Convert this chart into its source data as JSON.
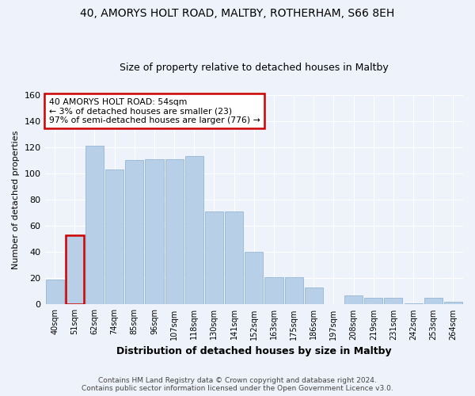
{
  "title": "40, AMORYS HOLT ROAD, MALTBY, ROTHERHAM, S66 8EH",
  "subtitle": "Size of property relative to detached houses in Maltby",
  "xlabel": "Distribution of detached houses by size in Maltby",
  "ylabel": "Number of detached properties",
  "bar_labels": [
    "40sqm",
    "51sqm",
    "62sqm",
    "74sqm",
    "85sqm",
    "96sqm",
    "107sqm",
    "118sqm",
    "130sqm",
    "141sqm",
    "152sqm",
    "163sqm",
    "175sqm",
    "186sqm",
    "197sqm",
    "208sqm",
    "219sqm",
    "231sqm",
    "242sqm",
    "253sqm",
    "264sqm"
  ],
  "bar_values": [
    19,
    53,
    121,
    103,
    110,
    111,
    111,
    113,
    71,
    71,
    40,
    21,
    21,
    13,
    0,
    7,
    5,
    5,
    1,
    5,
    2
  ],
  "bar_color": "#b8cfe8",
  "bar_edge_color": "#8aafd0",
  "highlight_bar_index": 1,
  "highlight_color": "#cc0000",
  "annotation_title": "40 AMORYS HOLT ROAD: 54sqm",
  "annotation_line1": "← 3% of detached houses are smaller (23)",
  "annotation_line2": "97% of semi-detached houses are larger (776) →",
  "ylim": [
    0,
    160
  ],
  "yticks": [
    0,
    20,
    40,
    60,
    80,
    100,
    120,
    140,
    160
  ],
  "background_color": "#eef2fa",
  "footer_line1": "Contains HM Land Registry data © Crown copyright and database right 2024.",
  "footer_line2": "Contains public sector information licensed under the Open Government Licence v3.0."
}
